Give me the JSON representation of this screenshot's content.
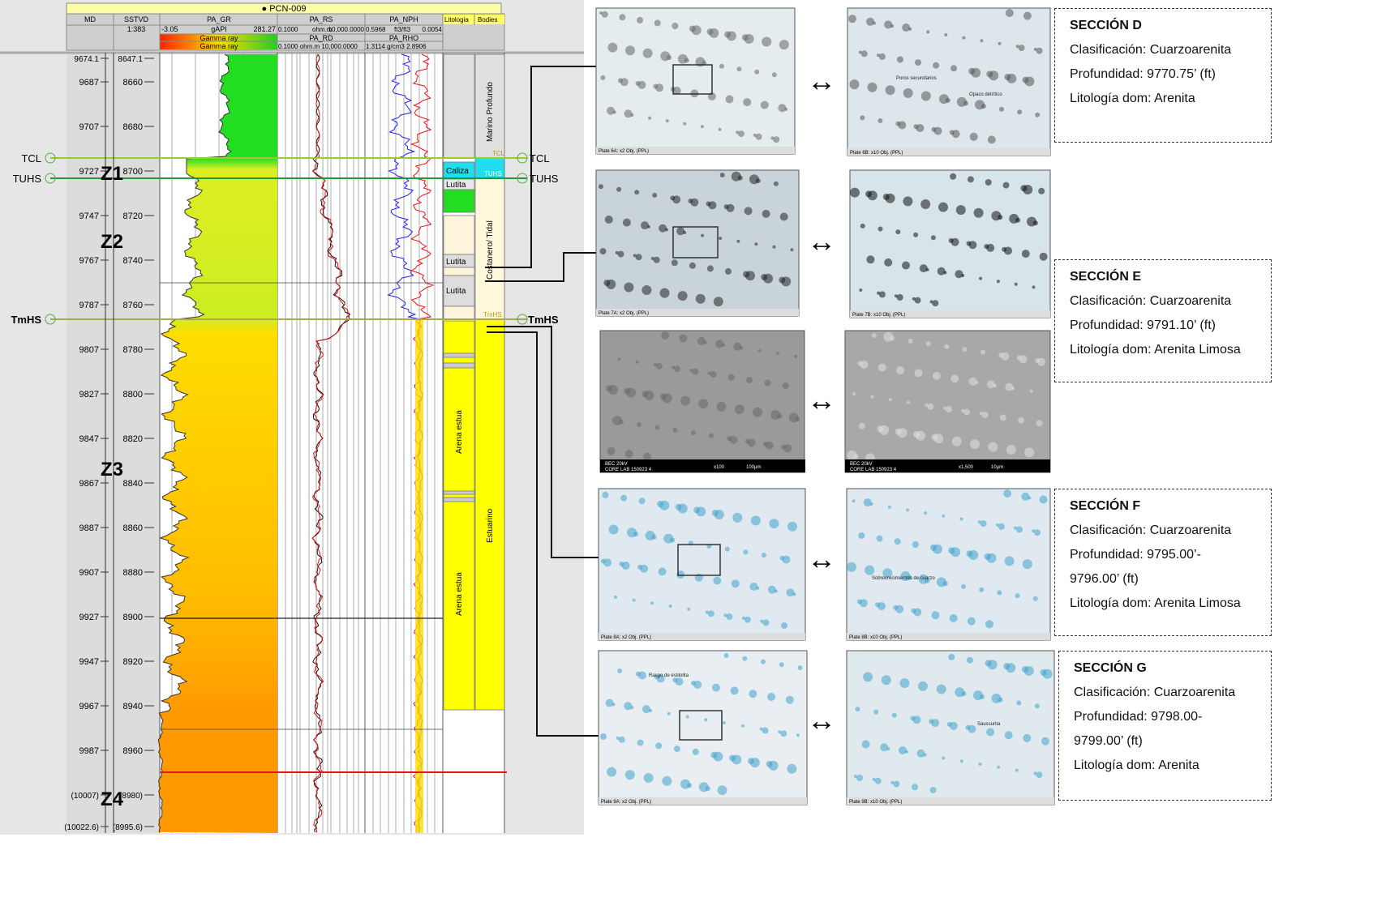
{
  "well_log": {
    "title": "PCN-009",
    "headers": {
      "md": "MD",
      "sstvd": "SSTVD",
      "scale": "1:383",
      "litologia": "Litologia",
      "bodies": "Bodies"
    },
    "gr": {
      "name": "PA_GR",
      "min": "-3.05",
      "unit": "gAPI",
      "max": "281.27",
      "label": "Gamma ray"
    },
    "rs": {
      "name": "PA_RS",
      "min": "0.1000",
      "unit": "ohm.m",
      "max": "10,000.0000"
    },
    "rd": {
      "name": "PA_RD",
      "scale": "0.1000 ohm.m 10,000.0000"
    },
    "nph": {
      "name": "PA_NPH",
      "min": "0.5968",
      "unit": "ft3/ft3",
      "max": "0.0054"
    },
    "rho": {
      "name": "PA_RHO",
      "scale": "1.3114 g/cm3 2.8906"
    },
    "md_labels": [
      "9674.1",
      "9687",
      "9707",
      "9727",
      "9747",
      "9767",
      "9787",
      "9807",
      "9827",
      "9847",
      "9867",
      "9887",
      "9907",
      "9927",
      "9947",
      "9967",
      "9987",
      "(10007)",
      "(10022.6)"
    ],
    "sstvd_labels": [
      "8647.1",
      "8660",
      "8680",
      "8700",
      "8720",
      "8740",
      "8760",
      "8780",
      "8800",
      "8820",
      "8840",
      "8860",
      "8880",
      "8900",
      "8920",
      "8940",
      "8960",
      "(8980)",
      "(8995.6)"
    ],
    "markers": [
      "TCL",
      "TUHS",
      "TmHS"
    ],
    "zones": [
      "Z1",
      "Z2",
      "Z3",
      "Z4"
    ],
    "lithology": [
      "Caliza",
      "Lutita",
      "Lutita",
      "Lutita",
      "Arena estua",
      "Arena estua"
    ],
    "bodies": [
      "Marino Profundo",
      "Costanero/ Tidal",
      "Estuarino"
    ]
  },
  "photos": {
    "captions": [
      "Plate 6A: x2 Obj. (PPL)",
      "Plate 6B: x10 Obj. (PPL)",
      "Plate 7A: x2 Obj. (PPL)",
      "Plate 7B: x10 Obj. (PPL)",
      "Plate 8A: x2 Obj. (PPL)",
      "Plate 8B: x10 Obj. (PPL)",
      "Plate 9A: x2 Obj. (PPL)",
      "Plate 9B: x10 Obj. (PPL)"
    ],
    "sem": [
      "BEC 20kV",
      "CORE LAB 150923 4",
      "x100",
      "100µm",
      "BEC 20kV",
      "CORE LAB 150923 4",
      "x1,500",
      "10µm"
    ],
    "annotations": [
      "Opaco detrítico",
      "Poros secundarios",
      "Sobrecrecimientos de cuarzo",
      "Rasgo de estilolita",
      "Saussurita"
    ]
  },
  "sections": [
    {
      "title": "SECCIÓN D",
      "lines": [
        "Clasificación: Cuarzoarenita",
        "Profundidad: 9770.75’ (ft)",
        "Litología dom: Arenita"
      ]
    },
    {
      "title": "SECCIÓN E",
      "lines": [
        "Clasificación: Cuarzoarenita",
        "Profundidad: 9791.10’ (ft)",
        "Litología dom: Arenita Limosa"
      ]
    },
    {
      "title": "SECCIÓN F",
      "lines": [
        "Clasificación: Cuarzoarenita",
        "Profundidad: 9795.00’-",
        "9796.00’ (ft)",
        "Litología dom: Arenita Limosa"
      ]
    },
    {
      "title": "SECCIÓN G",
      "lines": [
        "Clasificación: Cuarzoarenita",
        "Profundidad: 9798.00-",
        "9799.00’ (ft)",
        "Litología dom: Arenita"
      ]
    }
  ]
}
